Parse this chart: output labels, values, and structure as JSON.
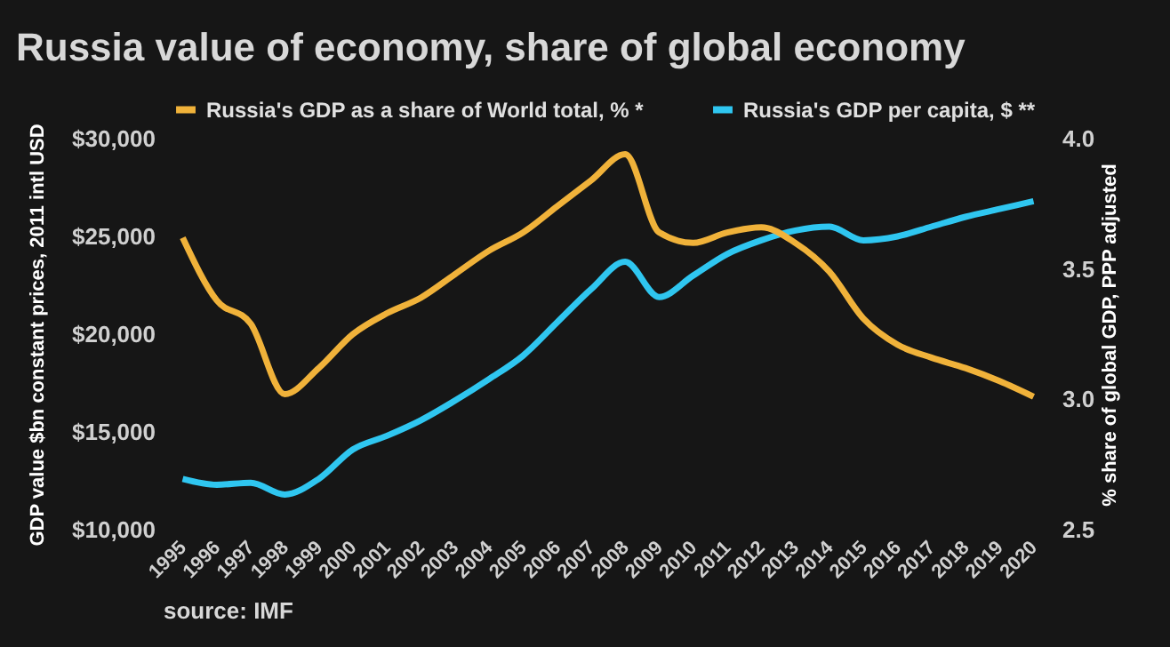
{
  "chart_data": {
    "type": "line",
    "title": "Russia value of economy, share of global economy",
    "ylabel": "GDP value $bn constant prices, 2011 intl USD",
    "y2label": "% share of global GDP, PPP adjusted",
    "annotations": [
      "source: IMF"
    ],
    "categories": [
      "1995",
      "1996",
      "1997",
      "1998",
      "1999",
      "2000",
      "2001",
      "2002",
      "2003",
      "2004",
      "2005",
      "2006",
      "2007",
      "2008",
      "2009",
      "2010",
      "2011",
      "2012",
      "2013",
      "2014",
      "2015",
      "2016",
      "2017",
      "2018",
      "2019",
      "2020"
    ],
    "series": [
      {
        "name": "Russia's GDP as a share of World total, % *",
        "color": "#f0b23a",
        "axis": "y2",
        "values": [
          3.62,
          3.38,
          3.29,
          3.02,
          3.12,
          3.25,
          3.33,
          3.39,
          3.48,
          3.57,
          3.64,
          3.74,
          3.84,
          3.94,
          3.64,
          3.6,
          3.64,
          3.66,
          3.6,
          3.49,
          3.31,
          3.21,
          3.16,
          3.12,
          3.07,
          3.01
        ]
      },
      {
        "name": "Russia's GDP per capita, $ **",
        "color": "#2fc6f0",
        "axis": "y",
        "values": [
          12600,
          12300,
          12400,
          11800,
          12600,
          14100,
          14800,
          15600,
          16600,
          17700,
          18900,
          20600,
          22300,
          23700,
          21900,
          23000,
          24100,
          24800,
          25300,
          25500,
          24800,
          25000,
          25500,
          26000,
          26400,
          26800
        ]
      }
    ],
    "ylim": [
      10000,
      30000
    ],
    "yticks": [
      {
        "value": 10000,
        "label": "$10,000"
      },
      {
        "value": 15000,
        "label": "$15,000"
      },
      {
        "value": 20000,
        "label": "$20,000"
      },
      {
        "value": 25000,
        "label": "$25,000"
      },
      {
        "value": 30000,
        "label": "$30,000"
      }
    ],
    "y2lim": [
      2.5,
      4.0
    ],
    "y2ticks": [
      2.5,
      {
        "value": 3,
        "label": "3.0"
      },
      3.5,
      {
        "value": 4,
        "label": "4.0"
      }
    ],
    "legend": "top"
  }
}
